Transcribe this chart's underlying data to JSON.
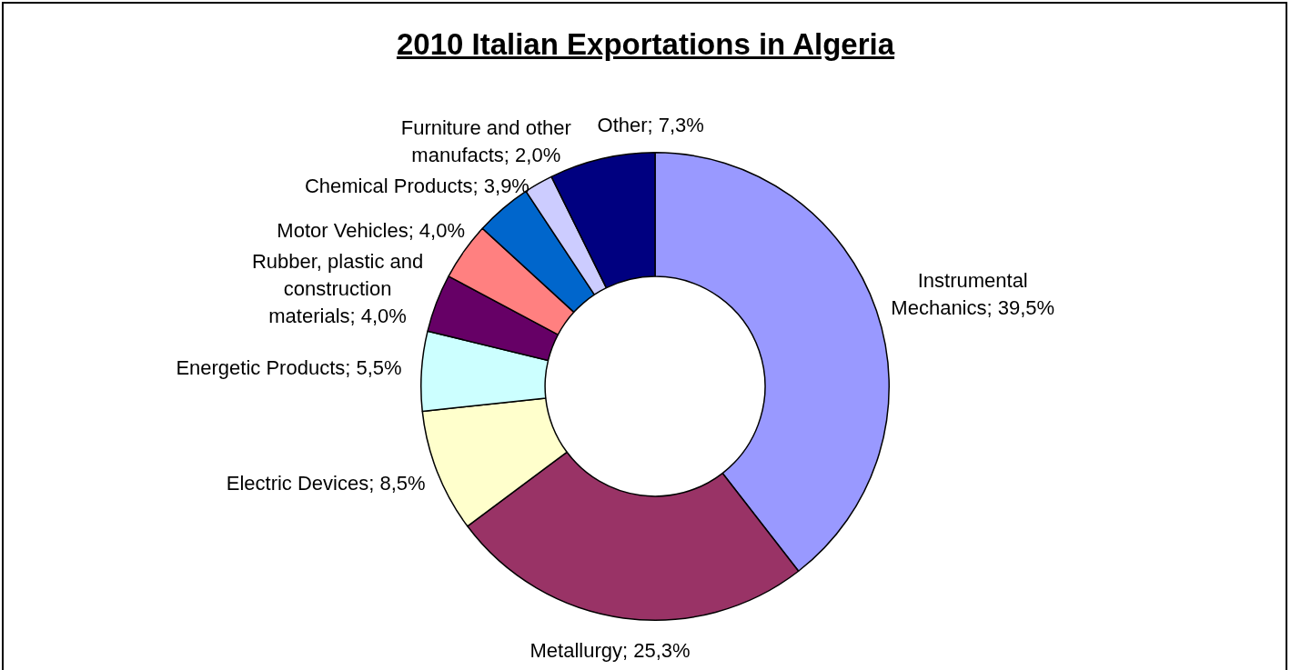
{
  "chart_data": {
    "type": "donut",
    "title": "2010 Italian Exportations in Algeria",
    "categories": [
      "Instrumental Mechanics",
      "Metallurgy",
      "Electric Devices",
      "Energetic Products",
      "Rubber, plastic and construction materials",
      "Motor Vehicles",
      "Chemical Products",
      "Furniture and other manufacts",
      "Other"
    ],
    "values": [
      39.5,
      25.3,
      8.5,
      5.5,
      4.0,
      4.0,
      3.9,
      2.0,
      7.3
    ],
    "value_labels": [
      "39,5%",
      "25,3%",
      "8,5%",
      "5,5%",
      "4,0%",
      "4,0%",
      "3,9%",
      "2,0%",
      "7,3%"
    ],
    "colors": [
      "#9999ff",
      "#993366",
      "#ffffcc",
      "#ccffff",
      "#660066",
      "#ff8080",
      "#0066cc",
      "#ccccff",
      "#000080"
    ],
    "legend": false
  }
}
